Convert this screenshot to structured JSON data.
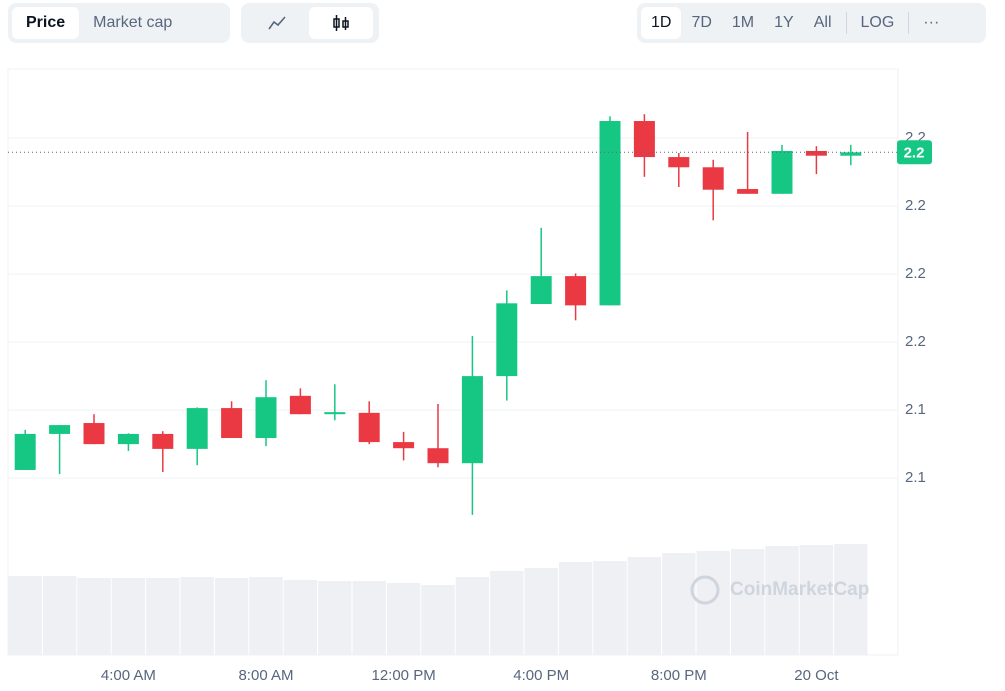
{
  "ui": {
    "metric_tabs": [
      "Price",
      "Market cap"
    ],
    "ranges": [
      "1D",
      "7D",
      "1M",
      "1Y",
      "All"
    ],
    "log": "LOG",
    "more": "···",
    "watermark": "CoinMarketCap"
  },
  "chart_data": {
    "type": "candlestick",
    "categories": [
      null,
      null,
      null,
      "4:00 AM",
      null,
      null,
      null,
      "8:00 AM",
      null,
      null,
      null,
      "12:00 PM",
      null,
      null,
      null,
      "4:00 PM",
      null,
      null,
      null,
      "8:00 PM",
      null,
      null,
      null,
      "20 Oct",
      null
    ],
    "open": [
      2.1312,
      2.1365,
      2.1381,
      2.135,
      2.1365,
      2.1343,
      2.1403,
      2.1359,
      2.1421,
      2.1394,
      2.1396,
      2.1353,
      2.1344,
      2.1322,
      2.145,
      2.1556,
      2.1597,
      2.1554,
      2.1825,
      2.1772,
      2.1757,
      2.1725,
      2.1718,
      2.1781,
      2.1774
    ],
    "close": [
      2.1365,
      2.1378,
      2.135,
      2.1365,
      2.1343,
      2.1403,
      2.1359,
      2.1419,
      2.1394,
      2.1397,
      2.1353,
      2.1344,
      2.1322,
      2.145,
      2.1557,
      2.1597,
      2.1554,
      2.1825,
      2.1772,
      2.1757,
      2.1724,
      2.1718,
      2.1781,
      2.1774,
      2.1779
    ],
    "high": [
      2.1371,
      2.1378,
      2.1394,
      2.1366,
      2.1369,
      2.1404,
      2.1413,
      2.1444,
      2.1432,
      2.1438,
      2.1413,
      2.1368,
      2.1409,
      2.1509,
      2.1576,
      2.1668,
      2.1601,
      2.1832,
      2.1835,
      2.1778,
      2.1768,
      2.1809,
      2.179,
      2.1788,
      2.179
    ],
    "low": [
      2.1312,
      2.1306,
      2.135,
      2.134,
      2.1309,
      2.1319,
      2.1359,
      2.1347,
      2.1394,
      2.1385,
      2.135,
      2.1326,
      2.1316,
      2.1246,
      2.1414,
      2.1556,
      2.1532,
      2.1554,
      2.1743,
      2.1728,
      2.1679,
      2.1718,
      2.1718,
      2.1747,
      2.176
    ],
    "volume": [
      79,
      79,
      77,
      77,
      77,
      78,
      77,
      78,
      75,
      74,
      74,
      72,
      70,
      78,
      84,
      87,
      93,
      94,
      98,
      102,
      104,
      106,
      109,
      110,
      111
    ],
    "volume_lim": [
      0,
      200
    ],
    "up_color": "#16c784",
    "down_color": "#ea3943",
    "volume_color": "#eef0f3",
    "ylim": [
      2.104,
      2.19
    ],
    "yticks": [
      {
        "value": 2.13,
        "label": "2.1"
      },
      {
        "value": 2.14,
        "label": "2.1"
      },
      {
        "value": 2.15,
        "label": "2.2"
      },
      {
        "value": 2.16,
        "label": "2.2"
      },
      {
        "value": 2.17,
        "label": "2.2"
      },
      {
        "value": 2.18,
        "label": "2.2"
      }
    ],
    "last_price": {
      "value": 2.1779,
      "label": "2.2"
    },
    "grid": true
  }
}
